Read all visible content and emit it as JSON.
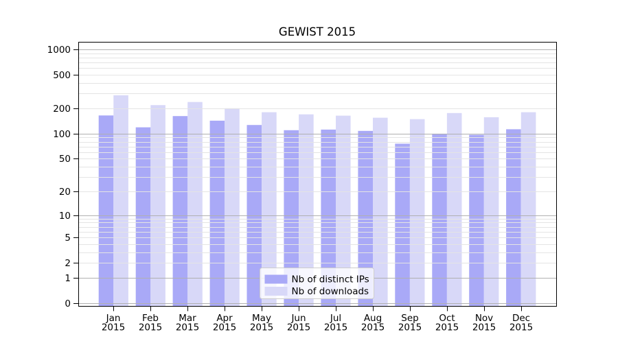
{
  "chart_data": {
    "type": "bar",
    "title": "GEWIST 2015",
    "categories": [
      "Jan",
      "Feb",
      "Mar",
      "Apr",
      "May",
      "Jun",
      "Jul",
      "Aug",
      "Sep",
      "Oct",
      "Nov",
      "Dec"
    ],
    "category_year": "2015",
    "series": [
      {
        "name": "Nb of distinct IPs",
        "color": "#a9a9f7",
        "values": [
          165,
          119,
          162,
          143,
          127,
          110,
          112,
          108,
          76,
          100,
          97,
          113
        ]
      },
      {
        "name": "Nb of downloads",
        "color": "#d8d8f8",
        "values": [
          286,
          219,
          238,
          201,
          180,
          170,
          164,
          155,
          149,
          176,
          157,
          180
        ]
      }
    ],
    "yscale": "log(value+1)",
    "ytick_values": [
      0,
      1,
      2,
      5,
      10,
      20,
      50,
      100,
      200,
      500,
      1000
    ],
    "ytick_labels": [
      "0",
      "1",
      "2",
      "5",
      "10",
      "20",
      "50",
      "100",
      "200",
      "500",
      "1000"
    ],
    "ylim": [
      0,
      1230
    ],
    "xlabel": "",
    "ylabel": "",
    "grid": true,
    "legend": {
      "position": "lower-center",
      "entries": [
        "Nb of distinct IPs",
        "Nb of downloads"
      ]
    },
    "colors": {
      "bar_distinct_ips": "#a9a9f7",
      "bar_downloads": "#d8d8f8",
      "major_grid": "#b0b0b0",
      "minor_grid": "#e4e4e4",
      "spine": "#000000",
      "text": "#000000",
      "legend_border": "#cccccc",
      "background": "#ffffff"
    }
  }
}
